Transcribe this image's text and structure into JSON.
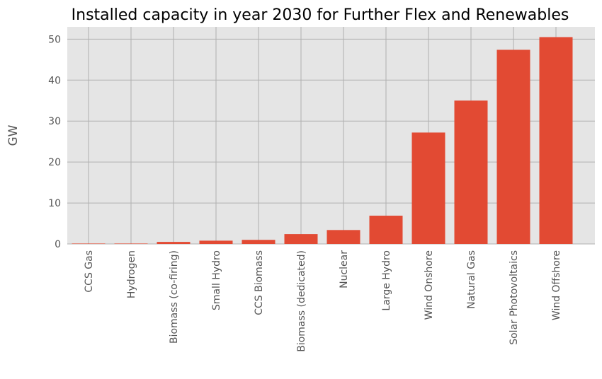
{
  "chart_data": {
    "type": "bar",
    "title": "Installed capacity in year 2030 for Further Flex and Renewables",
    "xlabel": "",
    "ylabel": "GW",
    "categories": [
      "CCS Gas",
      "Hydrogen",
      "Biomass (co-firing)",
      "Small Hydro",
      "CCS Biomass",
      "Biomass (dedicated)",
      "Nuclear",
      "Large Hydro",
      "Wind Onshore",
      "Natural Gas",
      "Solar Photovoltaics",
      "Wind Offshore"
    ],
    "values": [
      0.1,
      0.1,
      0.5,
      0.8,
      1.0,
      2.4,
      3.4,
      6.9,
      27.2,
      35.0,
      47.4,
      50.5
    ],
    "ylim": [
      0,
      53
    ],
    "yticks": [
      0,
      10,
      20,
      30,
      40,
      50
    ],
    "grid": true,
    "legend": "none",
    "colors": {
      "bar": "#E24A33",
      "plot_background": "#E5E5E5",
      "grid": "#B0B0B0"
    }
  }
}
